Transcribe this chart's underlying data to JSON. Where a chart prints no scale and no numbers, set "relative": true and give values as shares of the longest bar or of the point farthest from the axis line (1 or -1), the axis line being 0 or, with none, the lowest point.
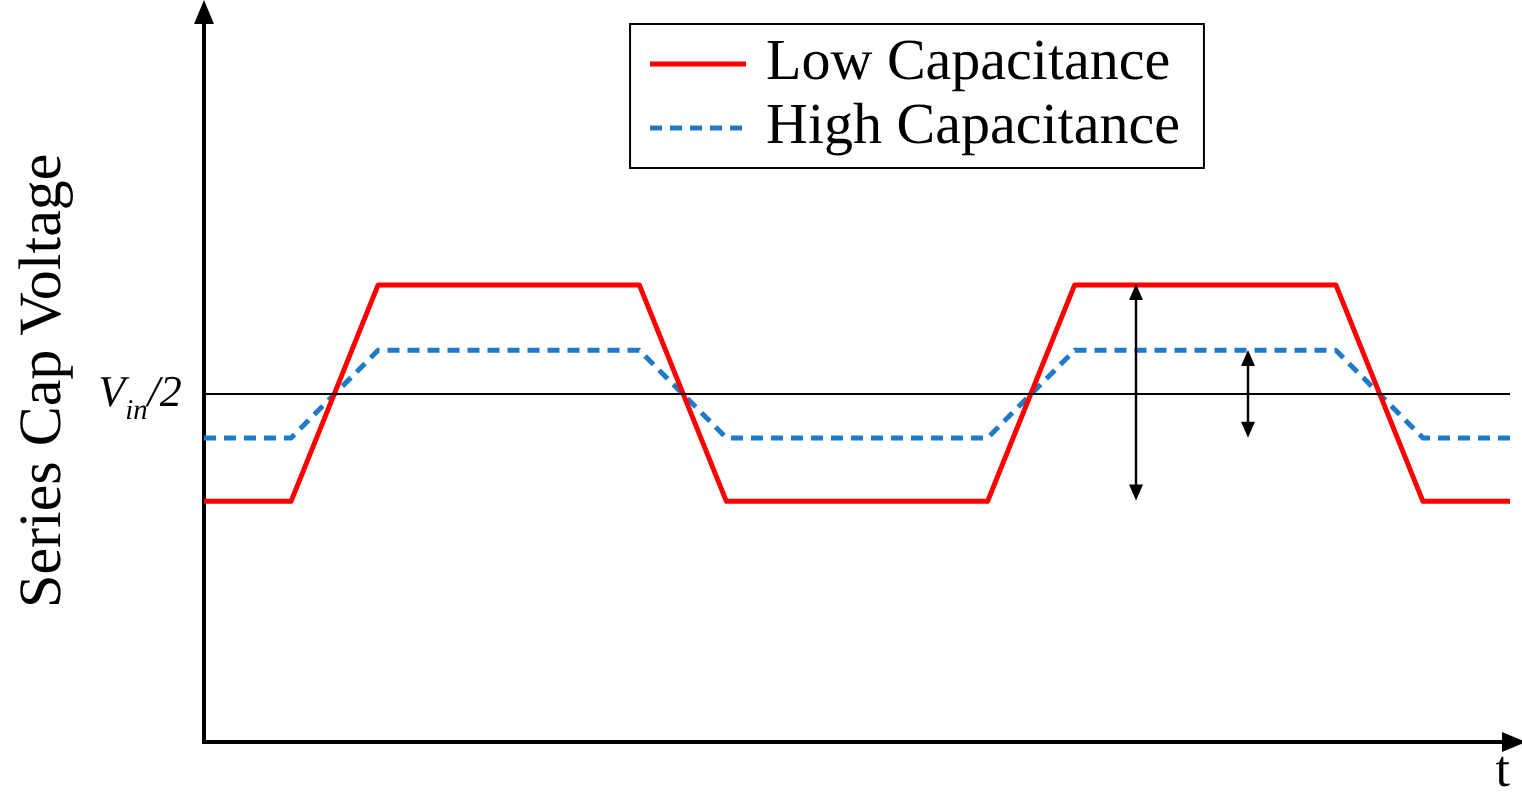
{
  "chart_data": {
    "type": "line",
    "relative": true,
    "ylabel": "Series Cap Voltage",
    "xlabel": "t",
    "categories": [
      null,
      null,
      null,
      null,
      null,
      null,
      null,
      null,
      null,
      null,
      null,
      null,
      null,
      null,
      null,
      null
    ],
    "series": [
      {
        "name": "Low Capacitance",
        "color": "#ff0000",
        "line_style": "solid",
        "values": [
          0.526,
          0.526,
          1,
          1,
          1,
          1,
          0.526,
          0.526,
          0.526,
          0.526,
          1,
          1,
          1,
          1,
          0.526,
          0.526
        ]
      },
      {
        "name": "High Capacitance",
        "color": "#1f7ac8",
        "line_style": "dashed",
        "values": [
          0.665,
          0.665,
          0.857,
          0.857,
          0.857,
          0.857,
          0.665,
          0.665,
          0.665,
          0.665,
          0.857,
          0.857,
          0.857,
          0.857,
          0.665,
          0.665
        ]
      }
    ],
    "ref_lines": [
      {
        "axis": "y",
        "value": 0.761,
        "label": "V$_{in}$/2",
        "color": "#000000"
      }
    ],
    "legend": "top",
    "marker": "none",
    "grid": false
  }
}
